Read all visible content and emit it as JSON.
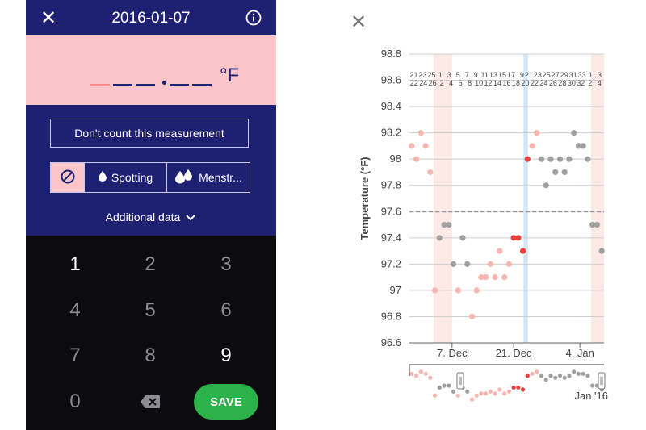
{
  "header": {
    "title": "2016-01-07",
    "close_icon": "close-icon",
    "info_icon": "info-icon"
  },
  "temperature": {
    "unit": "°F",
    "entered": ""
  },
  "options": {
    "dont_count_label": "Don't count this measurement",
    "bleeding_none_icon": "no-bleeding-icon",
    "spotting_label": "Spotting",
    "menstruation_label": "Menstr...",
    "additional_label": "Additional data"
  },
  "keypad": {
    "keys": [
      "1",
      "2",
      "3",
      "4",
      "5",
      "6",
      "7",
      "8",
      "9",
      "0"
    ],
    "save_label": "SAVE"
  },
  "colors": {
    "header_bg": "#1e2072",
    "temp_bg": "#f9c5c8",
    "keypad_bg": "#0b0b10",
    "save": "#2bb34a",
    "spotting_band": "#fde9e6",
    "ovulation_band": "#d6e8f7"
  },
  "chart_data": {
    "type": "scatter",
    "ylabel": "Temperature (°F)",
    "ylim": [
      96.6,
      98.8
    ],
    "yticks": [
      "96.6",
      "96.8",
      "97",
      "97.2",
      "97.4",
      "97.6",
      "97.8",
      "98",
      "98.2",
      "98.4",
      "98.6",
      "98.8"
    ],
    "xticks": [
      "7. Dec",
      "21. Dec",
      "4. Jan"
    ],
    "cover_line": 97.6,
    "cycle_days_top": [
      "21",
      "23",
      "25",
      "1",
      "3",
      "5",
      "7",
      "9",
      "11",
      "13",
      "15",
      "17",
      "19",
      "21",
      "23",
      "25",
      "27",
      "29",
      "31",
      "33",
      "1",
      "3"
    ],
    "cycle_days_bottom": [
      "22",
      "24",
      "26",
      "2",
      "4",
      "6",
      "8",
      "10",
      "12",
      "14",
      "16",
      "18",
      "20",
      "22",
      "24",
      "26",
      "28",
      "30",
      "32",
      "2",
      "4"
    ],
    "navigator_label": "Jan '16",
    "points": [
      {
        "d": 0,
        "t": 98.1,
        "c": "pink"
      },
      {
        "d": 1,
        "t": 98.0,
        "c": "pink"
      },
      {
        "d": 2,
        "t": 98.2,
        "c": "pink"
      },
      {
        "d": 3,
        "t": 98.1,
        "c": "pink"
      },
      {
        "d": 4,
        "t": 97.9,
        "c": "pink"
      },
      {
        "d": 5,
        "t": 97.0,
        "c": "pink"
      },
      {
        "d": 6,
        "t": 97.4,
        "c": "grey"
      },
      {
        "d": 7,
        "t": 97.5,
        "c": "grey"
      },
      {
        "d": 8,
        "t": 97.5,
        "c": "grey"
      },
      {
        "d": 9,
        "t": 97.2,
        "c": "grey"
      },
      {
        "d": 10,
        "t": 97.0,
        "c": "pink"
      },
      {
        "d": 11,
        "t": 97.4,
        "c": "grey"
      },
      {
        "d": 12,
        "t": 97.2,
        "c": "grey"
      },
      {
        "d": 13,
        "t": 96.8,
        "c": "pink"
      },
      {
        "d": 14,
        "t": 97.0,
        "c": "pink"
      },
      {
        "d": 15,
        "t": 97.1,
        "c": "pink"
      },
      {
        "d": 16,
        "t": 97.1,
        "c": "pink"
      },
      {
        "d": 17,
        "t": 97.2,
        "c": "pink"
      },
      {
        "d": 18,
        "t": 97.1,
        "c": "pink"
      },
      {
        "d": 19,
        "t": 97.3,
        "c": "pink"
      },
      {
        "d": 20,
        "t": 97.1,
        "c": "pink"
      },
      {
        "d": 21,
        "t": 97.2,
        "c": "pink"
      },
      {
        "d": 22,
        "t": 97.4,
        "c": "red"
      },
      {
        "d": 23,
        "t": 97.4,
        "c": "red"
      },
      {
        "d": 24,
        "t": 97.3,
        "c": "red"
      },
      {
        "d": 25,
        "t": 98.0,
        "c": "red"
      },
      {
        "d": 26,
        "t": 98.1,
        "c": "pink"
      },
      {
        "d": 27,
        "t": 98.2,
        "c": "pink"
      },
      {
        "d": 28,
        "t": 98.0,
        "c": "grey"
      },
      {
        "d": 29,
        "t": 97.8,
        "c": "grey"
      },
      {
        "d": 30,
        "t": 98.0,
        "c": "grey"
      },
      {
        "d": 31,
        "t": 97.9,
        "c": "grey"
      },
      {
        "d": 32,
        "t": 98.0,
        "c": "grey"
      },
      {
        "d": 33,
        "t": 97.9,
        "c": "grey"
      },
      {
        "d": 34,
        "t": 98.0,
        "c": "grey"
      },
      {
        "d": 35,
        "t": 98.2,
        "c": "grey"
      },
      {
        "d": 36,
        "t": 98.1,
        "c": "grey"
      },
      {
        "d": 37,
        "t": 98.1,
        "c": "grey"
      },
      {
        "d": 38,
        "t": 98.0,
        "c": "grey"
      },
      {
        "d": 39,
        "t": 97.5,
        "c": "grey"
      },
      {
        "d": 40,
        "t": 97.5,
        "c": "grey"
      },
      {
        "d": 41,
        "t": 97.3,
        "c": "grey"
      }
    ],
    "bands": [
      {
        "from": 5.2,
        "to": 9.2,
        "kind": "spotting"
      },
      {
        "from": 24.6,
        "to": 25.6,
        "kind": "ovulation"
      },
      {
        "from": 39.2,
        "to": 42,
        "kind": "spotting"
      }
    ]
  }
}
